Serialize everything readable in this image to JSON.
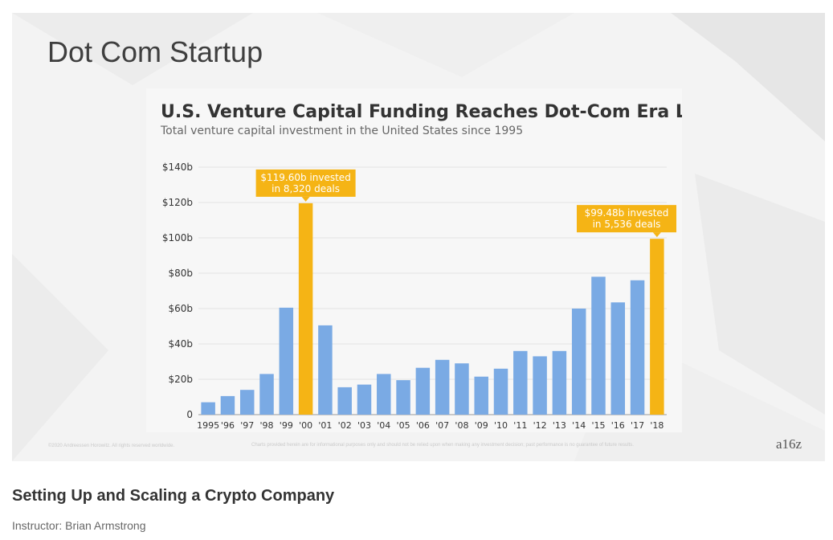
{
  "slide": {
    "title": "Dot Com Startup",
    "footer_left": "©2020 Andreessen Horowitz. All rights reserved worldwide.",
    "footer_disclaimer": "Charts provided herein are for informational purposes only and should not be relied upon when making any investment decision; past performance is no guarantee of future results.",
    "brand": "a16z"
  },
  "course": {
    "title": "Setting Up and Scaling a Crypto Company",
    "instructor": "Instructor: Brian Armstrong"
  },
  "colors": {
    "bar": "#7aaae4",
    "highlight": "#f5b415",
    "grid": "#e3e3e3",
    "axis": "#9a9a9a",
    "text": "#333333"
  },
  "chart_data": {
    "type": "bar",
    "title": "U.S. Venture Capital Funding Reaches Dot-Com Era Level",
    "subtitle": "Total venture capital investment in the United States since 1995",
    "categories": [
      "1995",
      "'96",
      "'97",
      "'98",
      "'99",
      "'00",
      "'01",
      "'02",
      "'03",
      "'04",
      "'05",
      "'06",
      "'07",
      "'08",
      "'09",
      "'10",
      "'11",
      "'12",
      "'13",
      "'14",
      "'15",
      "'16",
      "'17",
      "'18"
    ],
    "values": [
      7,
      10.5,
      14,
      23,
      60.5,
      119.6,
      50.5,
      15.5,
      17,
      23,
      19.5,
      26.5,
      31,
      29,
      21.5,
      26,
      36,
      33,
      36,
      60,
      78,
      63.5,
      76,
      99.48
    ],
    "highlight_categories": [
      "'00",
      "'18"
    ],
    "ylim": [
      0,
      140
    ],
    "y_ticks": [
      {
        "value": 0,
        "label": "0"
      },
      {
        "value": 20,
        "label": "$20b"
      },
      {
        "value": 40,
        "label": "$40b"
      },
      {
        "value": 60,
        "label": "$60b"
      },
      {
        "value": 80,
        "label": "$80b"
      },
      {
        "value": 100,
        "label": "$100b"
      },
      {
        "value": 120,
        "label": "$120b"
      },
      {
        "value": 140,
        "label": "$140b"
      }
    ],
    "grid": true,
    "annotations": [
      {
        "category": "'00",
        "lines": [
          "$119.60b invested",
          "in 8,320 deals"
        ]
      },
      {
        "category": "'18",
        "lines": [
          "$99.48b invested",
          "in 5,536 deals"
        ]
      }
    ]
  }
}
